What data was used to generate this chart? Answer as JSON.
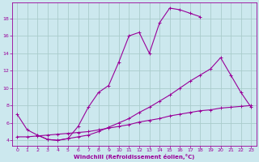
{
  "xlabel": "Windchill (Refroidissement éolien,°C)",
  "bg_color": "#cce8ee",
  "line_color": "#990099",
  "grid_color": "#aacccc",
  "xlim": [
    -0.5,
    23.5
  ],
  "ylim": [
    3.4,
    19.8
  ],
  "xticks": [
    0,
    1,
    2,
    3,
    4,
    5,
    6,
    7,
    8,
    9,
    10,
    11,
    12,
    13,
    14,
    15,
    16,
    17,
    18,
    19,
    20,
    21,
    22,
    23
  ],
  "yticks": [
    4,
    6,
    8,
    10,
    12,
    14,
    16,
    18
  ],
  "line1_x": [
    0,
    1,
    2,
    3,
    4,
    5,
    6,
    7,
    8,
    9,
    10,
    11,
    12,
    13,
    14,
    15,
    16,
    17,
    18
  ],
  "line1_y": [
    7.0,
    5.2,
    4.6,
    4.1,
    4.0,
    4.2,
    5.6,
    7.8,
    9.5,
    10.3,
    13.0,
    16.0,
    16.4,
    14.0,
    17.5,
    19.2,
    19.0,
    18.6,
    18.2
  ],
  "line2_x": [
    0,
    1,
    2,
    3,
    4,
    5,
    6,
    7,
    8,
    9,
    10,
    11,
    12,
    13,
    14,
    15,
    16,
    17,
    18,
    19,
    20,
    21,
    22,
    23
  ],
  "line2_y": [
    4.4,
    4.4,
    4.5,
    4.6,
    4.7,
    4.8,
    4.9,
    5.0,
    5.2,
    5.4,
    5.6,
    5.8,
    6.1,
    6.3,
    6.5,
    6.8,
    7.0,
    7.2,
    7.4,
    7.5,
    7.7,
    7.8,
    7.9,
    8.0
  ],
  "line3_x": [
    2,
    3,
    4,
    5,
    6,
    7,
    8,
    9,
    10,
    11,
    12,
    13,
    14,
    15,
    16,
    17,
    18,
    19,
    20,
    21,
    22,
    23
  ],
  "line3_y": [
    4.6,
    4.1,
    4.0,
    4.2,
    4.4,
    4.6,
    5.0,
    5.5,
    6.0,
    6.5,
    7.2,
    7.8,
    8.5,
    9.2,
    10.0,
    10.8,
    11.5,
    12.2,
    13.5,
    11.5,
    9.5,
    7.8
  ]
}
